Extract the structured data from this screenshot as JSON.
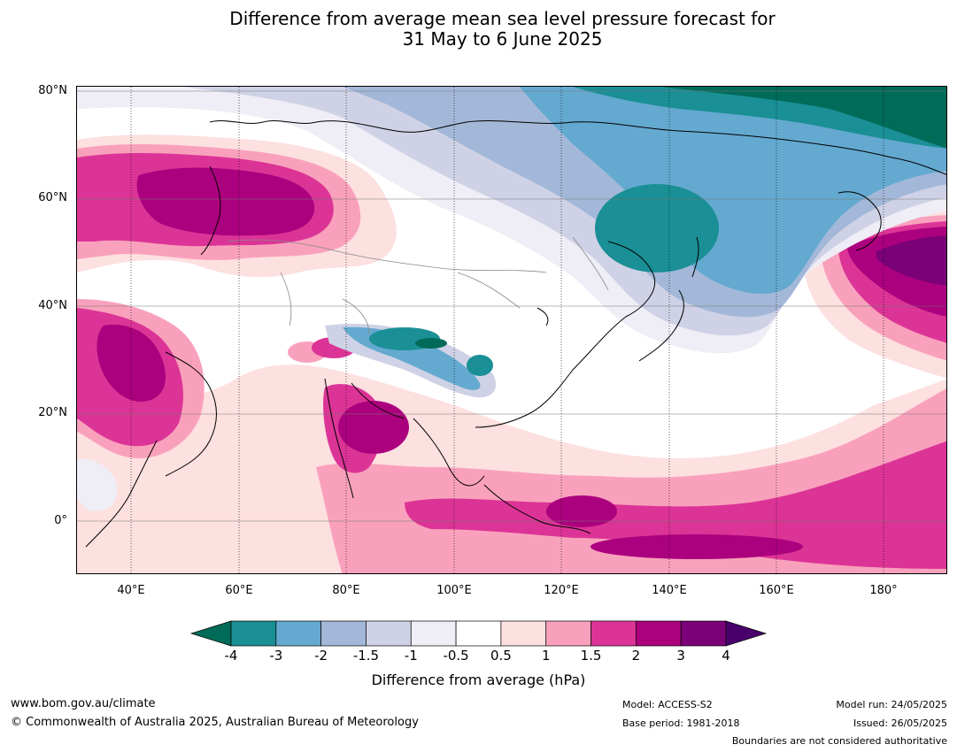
{
  "title": {
    "line1": "Difference from average mean sea level pressure forecast for",
    "line2": "31 May to 6 June 2025"
  },
  "map": {
    "lat_labels": [
      "80°N",
      "60°N",
      "40°N",
      "20°N",
      "0°"
    ],
    "lon_labels": [
      "40°E",
      "60°E",
      "80°E",
      "100°E",
      "120°E",
      "140°E",
      "160°E",
      "180°"
    ]
  },
  "colorbar": {
    "ticks": [
      "-4",
      "-3",
      "-2",
      "-1.5",
      "-1",
      "-0.5",
      "0.5",
      "1",
      "1.5",
      "2",
      "3",
      "4"
    ],
    "colors": [
      "#006b58",
      "#1a8f95",
      "#64a9d0",
      "#a3b8d8",
      "#cfd2e6",
      "#efedf5",
      "#ffffff",
      "#fde0e0",
      "#f9a1bc",
      "#dc3496",
      "#ac017e",
      "#7a0177",
      "#49006a"
    ],
    "label": "Difference from average (hPa)"
  },
  "footer": {
    "website": "www.bom.gov.au/climate",
    "copyright": "© Commonwealth of Australia 2025, Australian Bureau of Meteorology",
    "model": "Model: ACCESS-S2",
    "base_period": "Base period: 1981-2018",
    "model_run": "Model run: 24/05/2025",
    "issued": "Issued: 26/05/2025",
    "disclaimer": "Boundaries are not considered authoritative"
  }
}
